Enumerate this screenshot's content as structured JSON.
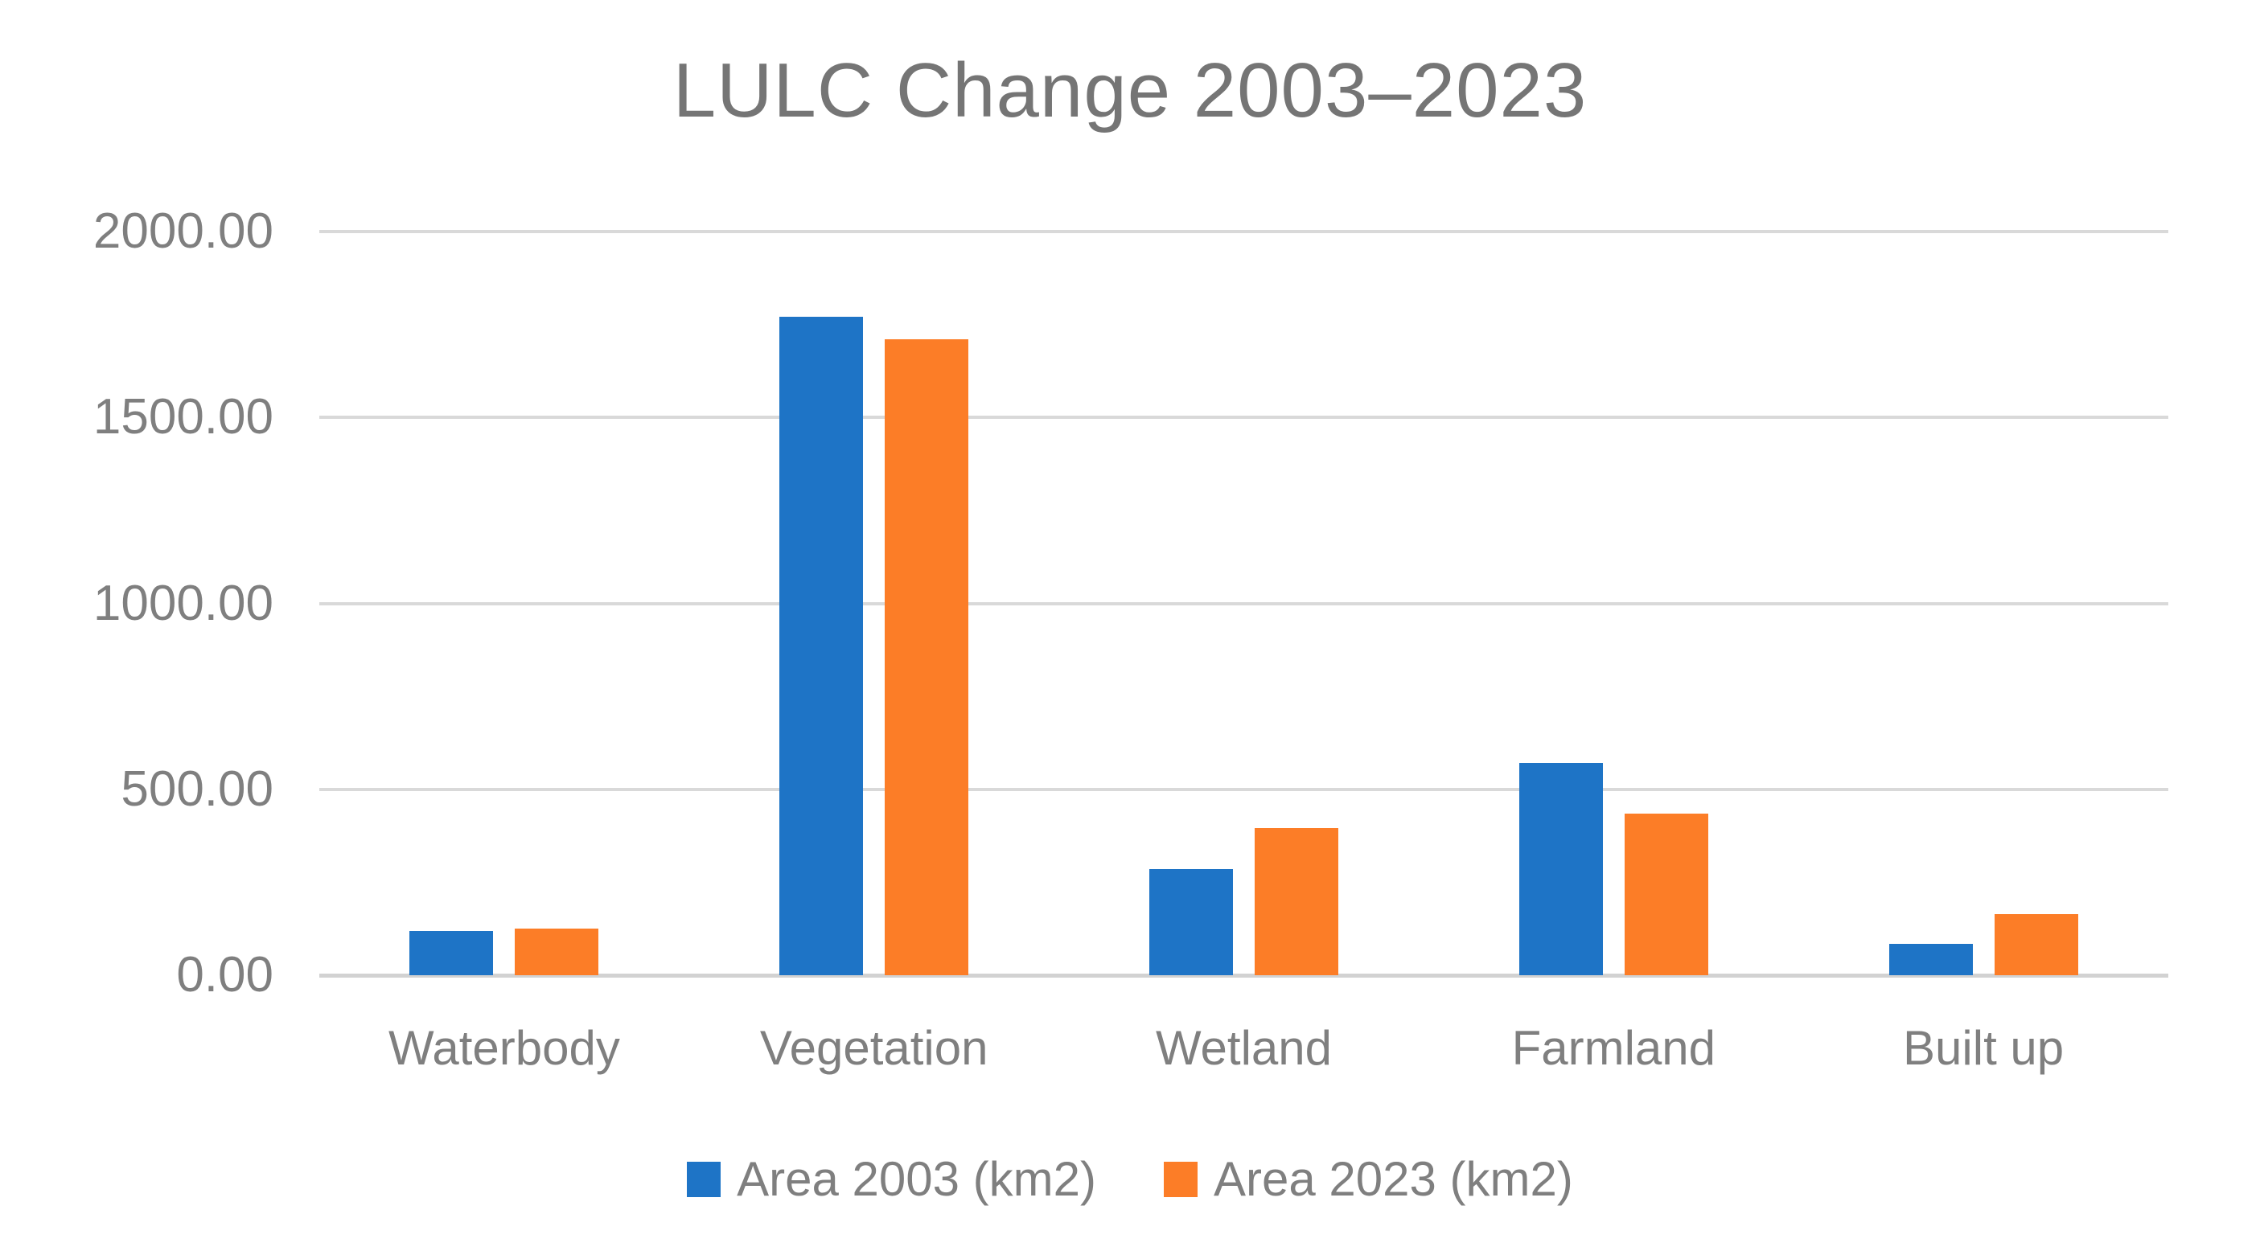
{
  "title": "LULC Change 2003–2023",
  "colors": {
    "series_2003": "#1E74C6",
    "series_2023": "#FC7D27",
    "gridline": "#D9D9D9",
    "axis_line": "#D2D2D2",
    "label_text": "#7F7F7F",
    "title_text": "#757575",
    "background": "#FFFFFF"
  },
  "legend": {
    "items": [
      {
        "label": "Area 2003 (km2)",
        "color": "#1E74C6"
      },
      {
        "label": "Area 2023 (km2)",
        "color": "#FC7D27"
      }
    ],
    "position": "bottom"
  },
  "chart_data": {
    "type": "bar",
    "title": "LULC Change 2003–2023",
    "categories": [
      "Waterbody",
      "Vegetation",
      "Wetland",
      "Farmland",
      "Built up"
    ],
    "series": [
      {
        "name": "Area 2003 (km2)",
        "color": "#1E74C6",
        "values": [
          120,
          1770,
          285,
          570,
          85
        ]
      },
      {
        "name": "Area 2023 (km2)",
        "color": "#FC7D27",
        "values": [
          125,
          1710,
          395,
          435,
          165
        ]
      }
    ],
    "xlabel": "",
    "ylabel": "",
    "ylim": [
      0,
      2000
    ],
    "yticks": [
      0,
      500,
      1000,
      1500,
      2000
    ],
    "ytick_labels": [
      "0.00",
      "500.00",
      "1000.00",
      "1500.00",
      "2000.00"
    ],
    "grid": "horizontal-only",
    "legend_position": "bottom"
  }
}
